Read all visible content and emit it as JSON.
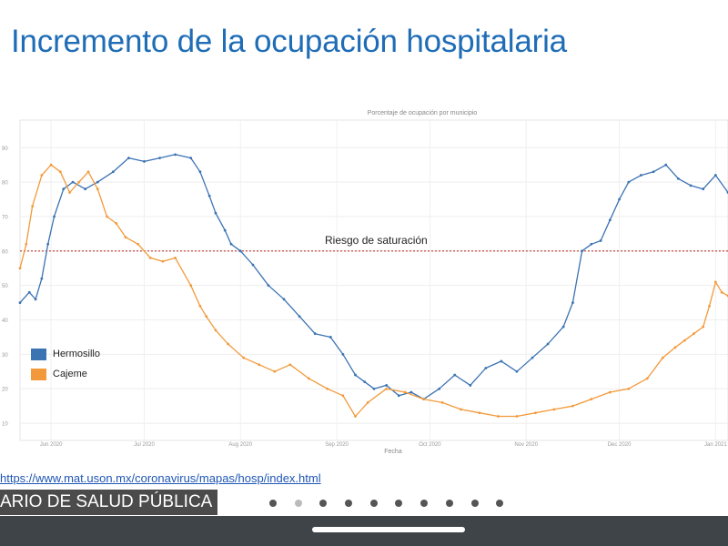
{
  "slide": {
    "title": "Incremento de la ocupación hospitalaria",
    "source_url": "https://www.mat.uson.mx/coronavirus/mapas/hosp/index.html",
    "footer_label": "ARIO DE SALUD PÚBLICA",
    "pager_count": 10,
    "pager_active_index": 1
  },
  "colors": {
    "title": "#1f6db6",
    "hermosillo": "#3b73b3",
    "cajeme": "#f29a3b",
    "threshold": "#c0392b"
  },
  "chart_data": {
    "type": "line",
    "title": "Porcentaje de ocupación por municipio",
    "xlabel": "Fecha",
    "ylabel": "",
    "ylim": [
      5,
      98
    ],
    "yticks": [
      10,
      20,
      30,
      40,
      50,
      60,
      70,
      80,
      90
    ],
    "xticks": [
      "Jun 2020",
      "Jul 2020",
      "Aug 2020",
      "Sep 2020",
      "Oct 2020",
      "Nov 2020",
      "Dec 2020",
      "Jan 2021"
    ],
    "annotation": {
      "text": "Riesgo de saturación",
      "y": 60
    },
    "legend": {
      "position": "left",
      "entries": [
        "Hermosillo",
        "Cajeme"
      ]
    },
    "series": [
      {
        "name": "Hermosillo",
        "x": [
          0,
          3,
          5,
          7,
          9,
          11,
          14,
          17,
          21,
          25,
          30,
          35,
          40,
          45,
          50,
          55,
          58,
          61,
          63,
          66,
          68,
          71,
          75,
          80,
          85,
          90,
          95,
          100,
          104,
          108,
          111,
          114,
          118,
          122,
          126,
          130,
          135,
          140,
          145,
          150,
          155,
          160,
          165,
          170,
          175,
          178,
          181,
          184,
          187,
          190,
          193,
          196,
          200,
          204,
          208,
          212,
          216,
          220,
          224,
          228
        ],
        "y": [
          45,
          48,
          46,
          52,
          62,
          70,
          78,
          80,
          78,
          80,
          83,
          87,
          86,
          87,
          88,
          87,
          83,
          76,
          71,
          66,
          62,
          60,
          56,
          50,
          46,
          41,
          36,
          35,
          30,
          24,
          22,
          20,
          21,
          18,
          19,
          17,
          20,
          24,
          21,
          26,
          28,
          25,
          29,
          33,
          38,
          45,
          60,
          62,
          63,
          69,
          75,
          80,
          82,
          83,
          85,
          81,
          79,
          78,
          82,
          77
        ],
        "ticks_x": [
          0,
          7,
          14,
          21,
          28,
          35,
          42,
          49,
          56,
          63,
          70,
          77,
          84,
          91,
          98,
          105,
          112,
          119,
          126,
          133,
          140,
          147,
          154,
          161,
          168,
          175,
          182,
          189,
          196,
          203,
          210,
          217,
          224
        ]
      },
      {
        "name": "Cajeme",
        "x": [
          0,
          2,
          4,
          7,
          10,
          13,
          16,
          19,
          22,
          25,
          28,
          31,
          34,
          38,
          42,
          46,
          50,
          55,
          58,
          60,
          63,
          67,
          72,
          77,
          82,
          87,
          93,
          99,
          104,
          108,
          112,
          118,
          124,
          130,
          136,
          142,
          148,
          154,
          160,
          166,
          172,
          178,
          184,
          190,
          196,
          202,
          207,
          211,
          214,
          217,
          220,
          222,
          224,
          226,
          228
        ],
        "y": [
          55,
          62,
          73,
          82,
          85,
          83,
          77,
          80,
          83,
          78,
          70,
          68,
          64,
          62,
          58,
          57,
          58,
          50,
          44,
          41,
          37,
          33,
          29,
          27,
          25,
          27,
          23,
          20,
          18,
          12,
          16,
          20,
          19,
          17,
          16,
          14,
          13,
          12,
          12,
          13,
          14,
          15,
          17,
          19,
          20,
          23,
          29,
          32,
          34,
          36,
          38,
          44,
          51,
          48,
          47
        ],
        "ticks_x": [
          0,
          7,
          14,
          21,
          28,
          35,
          42,
          49,
          56,
          63,
          70,
          77,
          84,
          91,
          98,
          105,
          112,
          119,
          126,
          133,
          140,
          147,
          154,
          161,
          168,
          175,
          182,
          189,
          196,
          203,
          210,
          217,
          224
        ]
      }
    ]
  }
}
